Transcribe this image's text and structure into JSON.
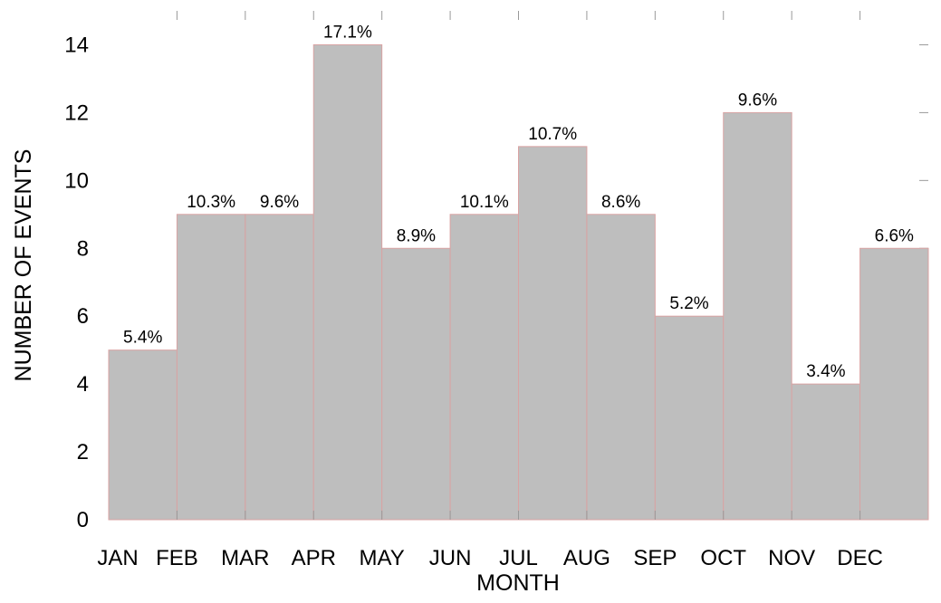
{
  "chart_data": {
    "type": "bar",
    "x_label": "MONTH",
    "y_label": "NUMBER OF EVENTS",
    "categories": [
      "JAN",
      "FEB",
      "MAR",
      "APR",
      "MAY",
      "JUN",
      "JUL",
      "AUG",
      "SEP",
      "OCT",
      "NOV",
      "DEC"
    ],
    "values": [
      5,
      9,
      9,
      14,
      8,
      9,
      11,
      9,
      6,
      12,
      4,
      8
    ],
    "percent_labels": [
      "5.4%",
      "10.3%",
      "9.6%",
      "17.1%",
      "8.9%",
      "10.1%",
      "10.7%",
      "8.6%",
      "5.2%",
      "9.6%",
      "3.4%",
      "6.6%"
    ],
    "color": "#bebebe",
    "edge_color": "#d9a3a3",
    "ylim": [
      0,
      15
    ],
    "yticks": [
      0,
      2,
      4,
      6,
      8,
      10,
      12,
      14
    ],
    "grid": false
  }
}
